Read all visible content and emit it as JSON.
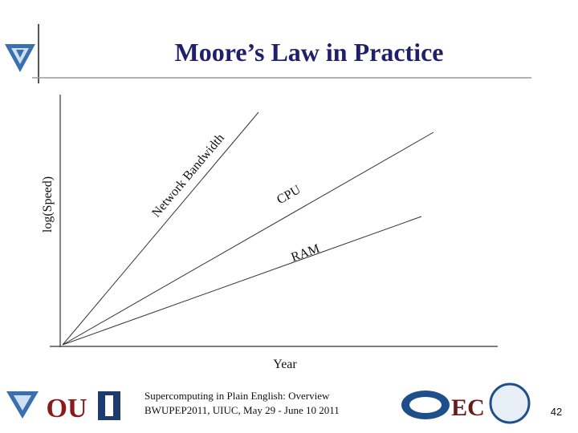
{
  "header": {
    "title": "Moore’s Law in Practice"
  },
  "diagram": {
    "y_axis_label": "log(Speed)",
    "x_axis_label": "Year",
    "lines": [
      {
        "label": "Network Bandwidth"
      },
      {
        "label": "CPU"
      },
      {
        "label": "RAM"
      }
    ]
  },
  "footer": {
    "line1": "Supercomputing in Plain English: Overview",
    "line2": "BWUPEP2011, UIUC, May 29 - June 10 2011",
    "page_number": "42"
  }
}
